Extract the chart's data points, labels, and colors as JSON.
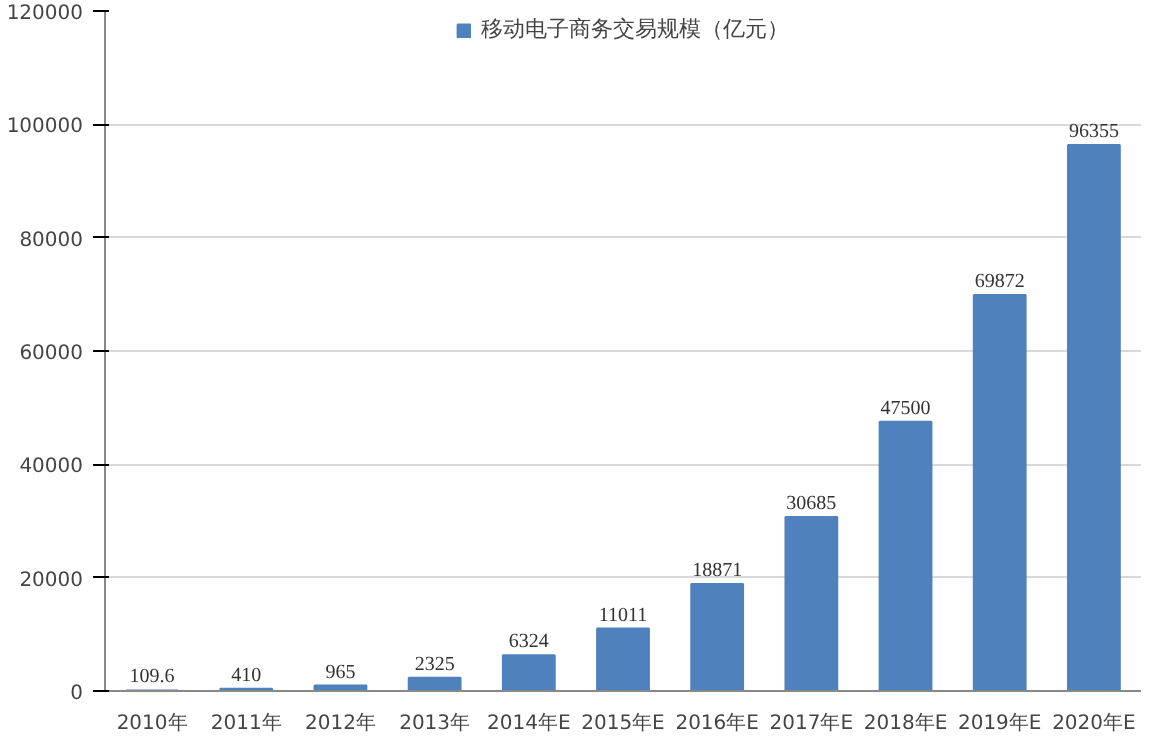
{
  "chart_data": {
    "type": "bar",
    "categories": [
      "2010年",
      "2011年",
      "2012年",
      "2013年",
      "2014年E",
      "2015年E",
      "2016年E",
      "2017年E",
      "2018年E",
      "2019年E",
      "2020年E"
    ],
    "series": [
      {
        "name": "移动电子商务交易规模（亿元）",
        "color": "#4f81bd",
        "values": [
          109.6,
          410,
          965,
          2325,
          6324,
          11011,
          18871,
          30685,
          47500,
          69872,
          96355
        ]
      }
    ],
    "ylim": [
      0,
      120000
    ],
    "yticks": [
      0,
      20000,
      40000,
      60000,
      80000,
      100000,
      120000
    ],
    "grid": "y",
    "legend": "top",
    "data_labels": true
  }
}
